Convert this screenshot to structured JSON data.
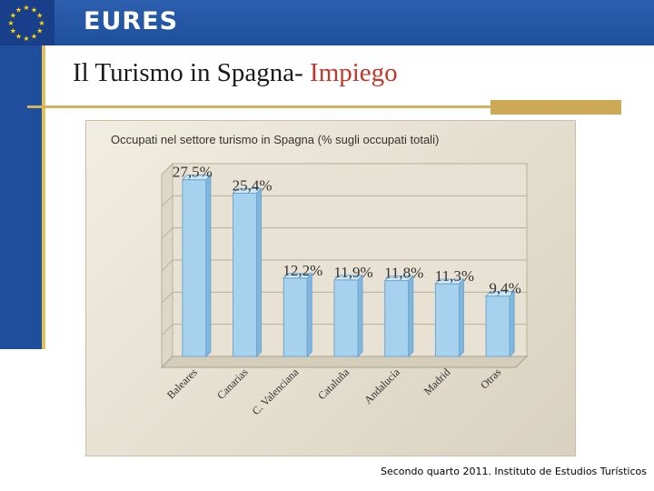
{
  "header": {
    "brand": "EURES"
  },
  "slide": {
    "title_main": "Il Turismo in Spagna- ",
    "title_highlight": "Impiego"
  },
  "source": "Secondo quarto 2011. Instituto de Estudios Turísticos",
  "colors": {
    "header_blue": "#1f4f9c",
    "accent_gold": "#d2b160",
    "bar": "#a9d4ef",
    "title_highlight": "#c0392b"
  },
  "icons": {
    "logo": "eu-stars-icon"
  },
  "chart_data": {
    "type": "bar",
    "title": "Occupati nel settore turismo in Spagna (% sugli occupati totali)",
    "categories": [
      "Baleares",
      "Canarias",
      "C. Valenciana",
      "Cataluña",
      "Andalucía",
      "Madrid",
      "Otras"
    ],
    "values": [
      27.5,
      25.4,
      12.2,
      11.9,
      11.8,
      11.3,
      9.4
    ],
    "value_labels": [
      "27,5%",
      "25,4%",
      "12,2%",
      "11,9%",
      "11,8%",
      "11,3%",
      "9,4%"
    ],
    "ylim": [
      0,
      30
    ],
    "grid": true,
    "xlabel": "",
    "ylabel": ""
  }
}
